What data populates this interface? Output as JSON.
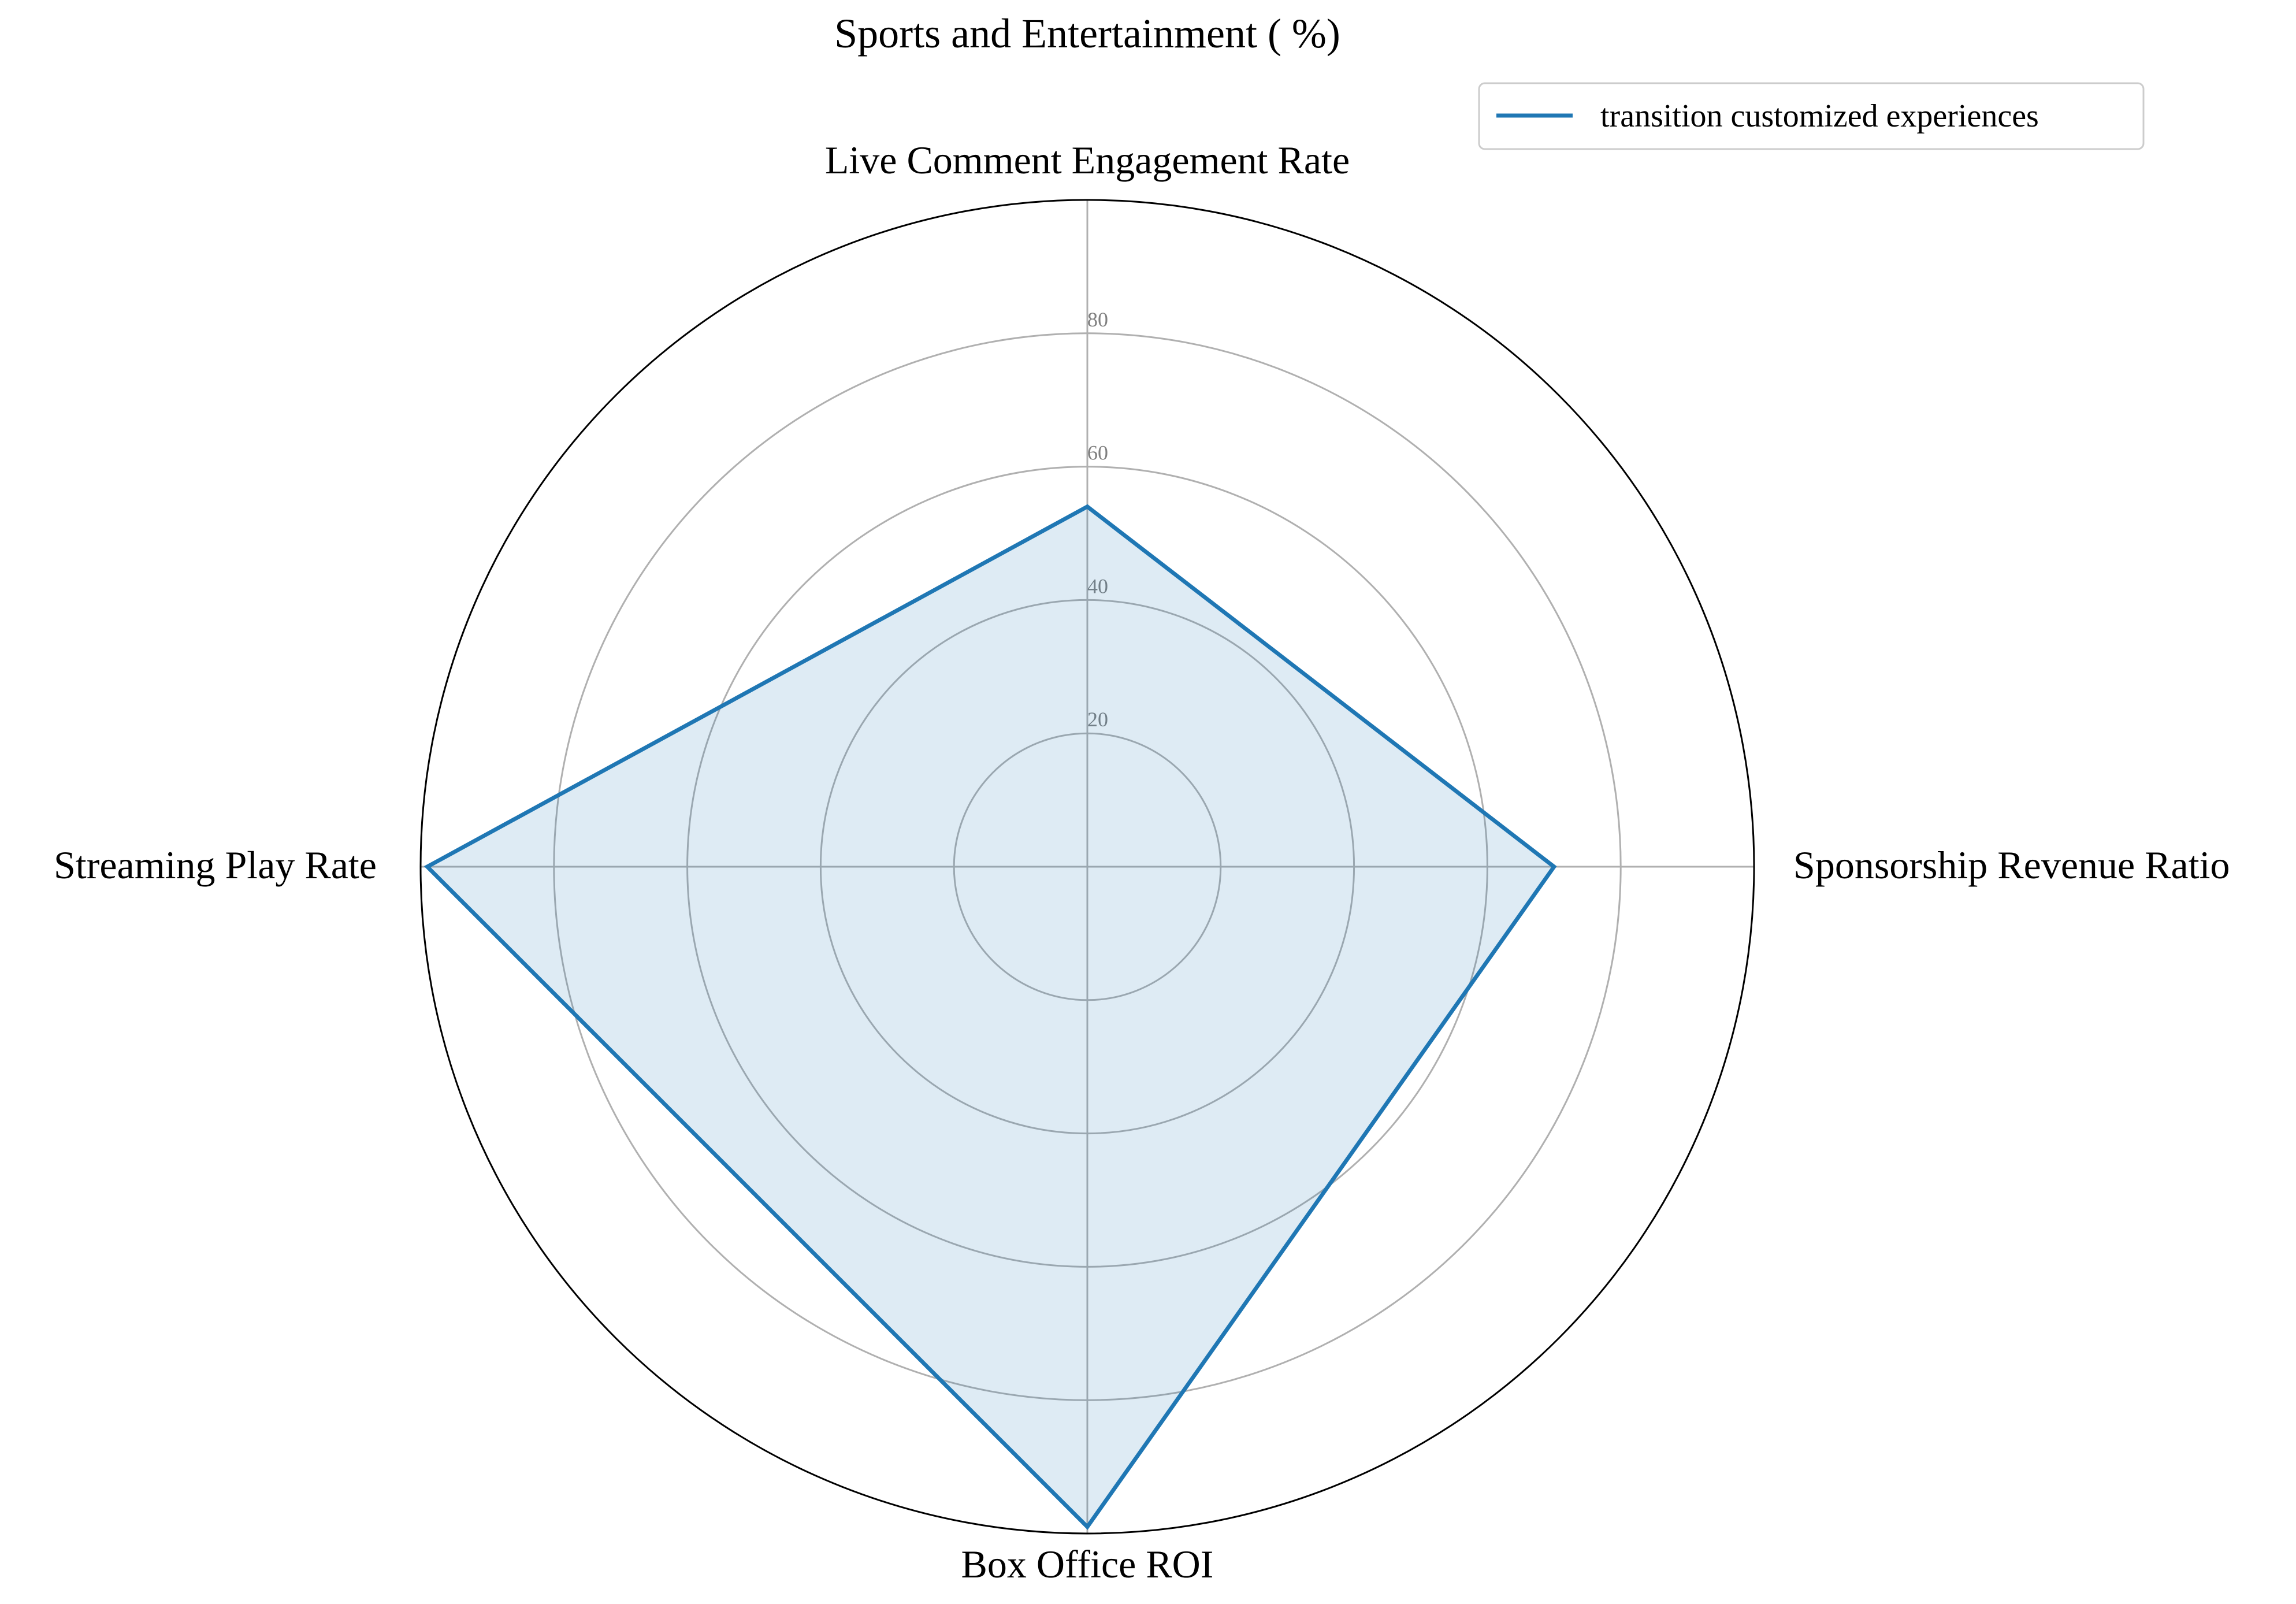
{
  "chart_data": {
    "type": "radar",
    "title": "Sports and Entertainment ( %)",
    "axes": [
      "Live Comment Engagement Rate",
      "Sponsorship Revenue Ratio",
      "Box Office ROI",
      "Streaming Play Rate"
    ],
    "radial_ticks": [
      20,
      40,
      60,
      80
    ],
    "rlim": [
      0,
      100
    ],
    "grid": true,
    "legend_position": "top-right",
    "series": [
      {
        "name": "transition customized experiences",
        "values": [
          54,
          70,
          99,
          99
        ],
        "color": "#1f77b4",
        "fill": "#1f77b4",
        "fill_opacity": 0.15
      }
    ]
  }
}
